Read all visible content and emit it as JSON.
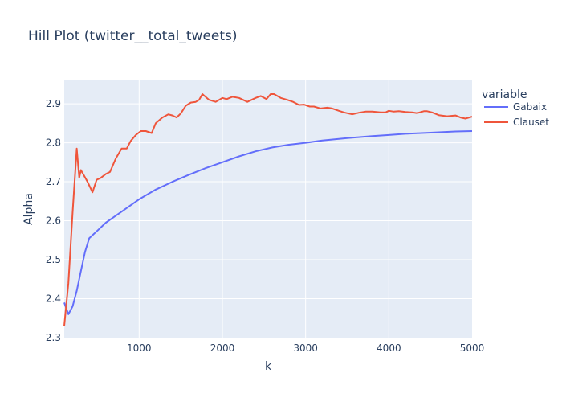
{
  "chart_data": {
    "type": "line",
    "title": "Hill Plot (twitter__total_tweets)",
    "xlabel": "k",
    "ylabel": "Alpha",
    "xlim": [
      100,
      5000
    ],
    "ylim": [
      2.3,
      2.96
    ],
    "x_ticks": [
      1000,
      2000,
      3000,
      4000,
      5000
    ],
    "y_ticks": [
      2.3,
      2.4,
      2.5,
      2.6,
      2.7,
      2.8,
      2.9
    ],
    "grid": true,
    "legend": {
      "title": "variable",
      "placement": "top-right, outside plot"
    },
    "series": [
      {
        "name": "Gabaix",
        "color": "#636efa",
        "x": [
          100,
          150,
          200,
          250,
          300,
          350,
          400,
          500,
          600,
          700,
          800,
          900,
          1000,
          1200,
          1400,
          1600,
          1800,
          2000,
          2200,
          2400,
          2600,
          2800,
          3000,
          3200,
          3500,
          3800,
          4000,
          4200,
          4500,
          4800,
          5000
        ],
        "values": [
          2.39,
          2.36,
          2.38,
          2.42,
          2.47,
          2.52,
          2.555,
          2.575,
          2.595,
          2.61,
          2.625,
          2.64,
          2.655,
          2.68,
          2.7,
          2.718,
          2.735,
          2.75,
          2.765,
          2.778,
          2.788,
          2.795,
          2.8,
          2.806,
          2.812,
          2.817,
          2.82,
          2.823,
          2.826,
          2.829,
          2.83
        ]
      },
      {
        "name": "Clauset",
        "color": "#ef553b",
        "x": [
          100,
          150,
          200,
          250,
          280,
          300,
          340,
          380,
          440,
          490,
          540,
          600,
          650,
          720,
          790,
          850,
          900,
          960,
          1020,
          1080,
          1150,
          1200,
          1280,
          1350,
          1400,
          1450,
          1500,
          1560,
          1620,
          1680,
          1720,
          1760,
          1840,
          1920,
          2000,
          2050,
          2120,
          2200,
          2300,
          2400,
          2460,
          2530,
          2580,
          2620,
          2700,
          2780,
          2850,
          2920,
          2980,
          3050,
          3100,
          3180,
          3260,
          3320,
          3400,
          3460,
          3560,
          3640,
          3720,
          3800,
          3900,
          3960,
          4000,
          4060,
          4120,
          4200,
          4280,
          4340,
          4420,
          4460,
          4520,
          4600,
          4700,
          4800,
          4860,
          4920,
          5000
        ],
        "values": [
          2.33,
          2.44,
          2.62,
          2.785,
          2.71,
          2.73,
          2.715,
          2.7,
          2.673,
          2.705,
          2.71,
          2.72,
          2.725,
          2.76,
          2.785,
          2.785,
          2.805,
          2.82,
          2.83,
          2.83,
          2.825,
          2.85,
          2.865,
          2.873,
          2.87,
          2.865,
          2.875,
          2.895,
          2.903,
          2.905,
          2.91,
          2.925,
          2.91,
          2.905,
          2.915,
          2.912,
          2.918,
          2.915,
          2.905,
          2.915,
          2.92,
          2.912,
          2.925,
          2.925,
          2.915,
          2.91,
          2.905,
          2.897,
          2.898,
          2.893,
          2.893,
          2.888,
          2.89,
          2.888,
          2.882,
          2.878,
          2.873,
          2.877,
          2.88,
          2.88,
          2.878,
          2.878,
          2.882,
          2.88,
          2.881,
          2.879,
          2.878,
          2.876,
          2.881,
          2.881,
          2.878,
          2.871,
          2.868,
          2.87,
          2.865,
          2.862,
          2.867
        ]
      }
    ]
  }
}
